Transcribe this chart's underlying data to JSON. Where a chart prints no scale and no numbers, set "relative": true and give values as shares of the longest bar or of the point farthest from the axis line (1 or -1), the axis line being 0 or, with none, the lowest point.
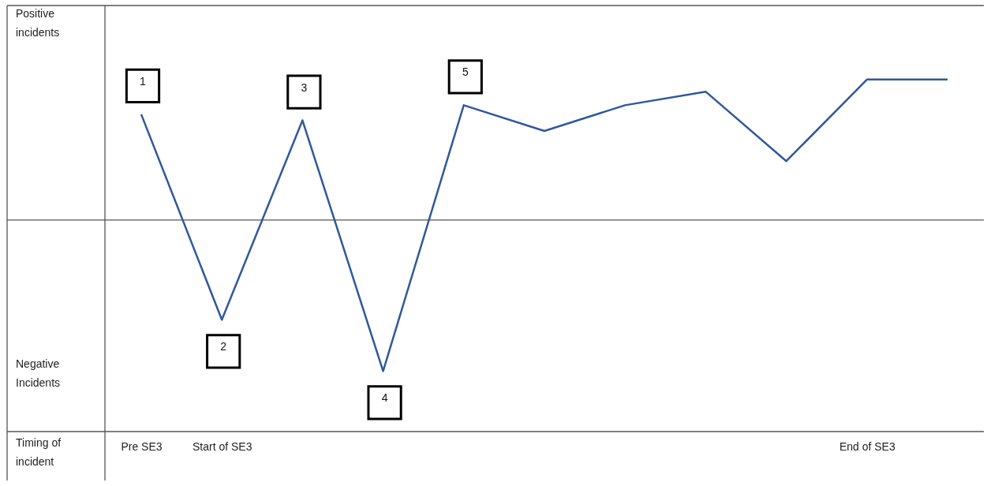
{
  "chart_data": {
    "type": "line",
    "relative": true,
    "xlabel": "Timing of incident",
    "categories": [
      "Pre SE3",
      "Start of SE3",
      null,
      null,
      null,
      null,
      null,
      null,
      null,
      "End of SE3",
      null
    ],
    "series": [
      {
        "color": "#30589c",
        "values": [
          0.7,
          -0.66,
          0.66,
          -1,
          0.76,
          0.59,
          0.76,
          0.85,
          0.39,
          0.93,
          0.93
        ]
      }
    ],
    "annotations": [
      "Positive incidents",
      "Negative Incidents",
      {
        "text": "1",
        "x": "Pre SE3",
        "y": 0.7
      },
      {
        "text": "2",
        "x": "Start of SE3",
        "y": -0.66
      },
      {
        "text": "3",
        "y": 0.66
      },
      {
        "text": "4",
        "y": -1
      },
      {
        "text": "5",
        "y": 0.76
      }
    ],
    "grid": false,
    "marker": "none",
    "line_style": "solid"
  }
}
